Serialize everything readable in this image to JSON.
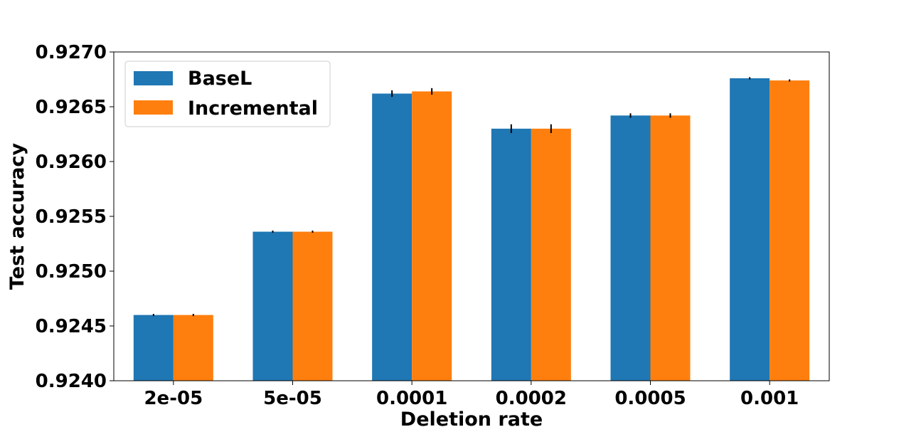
{
  "chart_data": {
    "type": "bar",
    "title": "",
    "xlabel": "Deletion rate",
    "ylabel": "Test accuracy",
    "categories": [
      "2e-05",
      "5e-05",
      "0.0001",
      "0.0002",
      "0.0005",
      "0.001"
    ],
    "ylim": [
      0.924,
      0.927
    ],
    "yticks": [
      "0.9240",
      "0.9245",
      "0.9250",
      "0.9255",
      "0.9260",
      "0.9265",
      "0.9270"
    ],
    "yticks_values": [
      0.924,
      0.9245,
      0.925,
      0.9255,
      0.926,
      0.9265,
      0.927
    ],
    "grid": false,
    "legend_position": "top-left",
    "series": [
      {
        "name": "BaseL",
        "color": "#1f77b4",
        "values": [
          0.9246,
          0.92536,
          0.92662,
          0.9263,
          0.92642,
          0.92676
        ],
        "errors": [
          1e-05,
          1e-05,
          3e-05,
          4e-05,
          2e-05,
          1e-05
        ]
      },
      {
        "name": "Incremental",
        "color": "#ff7f0e",
        "values": [
          0.9246,
          0.92536,
          0.92664,
          0.9263,
          0.92642,
          0.92674
        ],
        "errors": [
          1e-05,
          1e-05,
          3e-05,
          4e-05,
          2e-05,
          1e-05
        ]
      }
    ]
  }
}
